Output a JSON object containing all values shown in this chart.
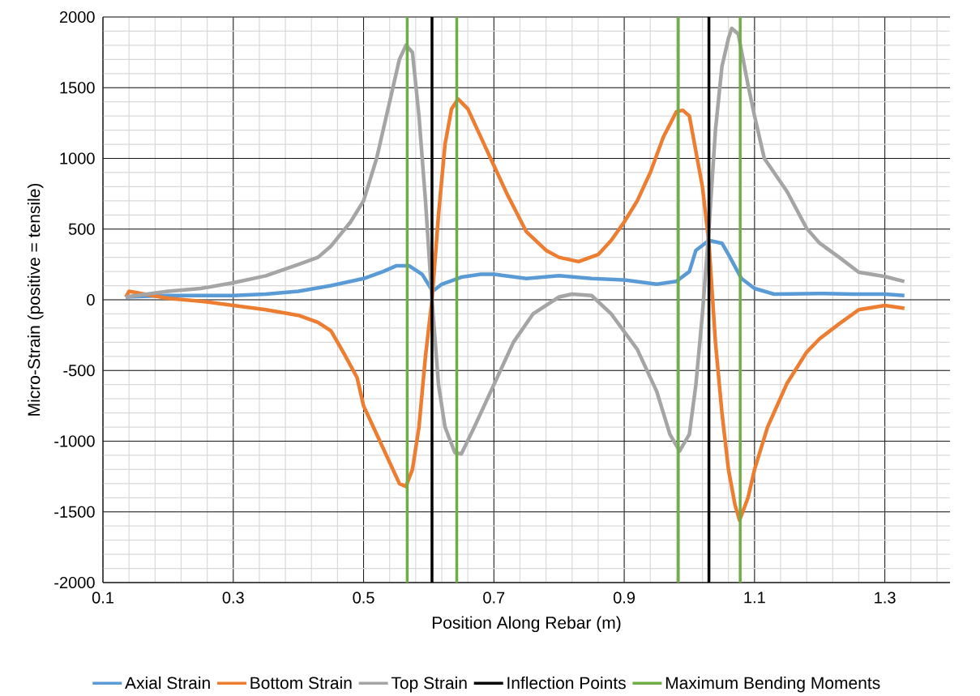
{
  "chart_data": {
    "type": "line",
    "xlabel": "Position Along Rebar (m)",
    "ylabel": "Micro-Strain (positive = tensile)",
    "xlim": [
      0.1,
      1.4
    ],
    "ylim": [
      -2000,
      2000
    ],
    "xticks": [
      0.1,
      0.3,
      0.5,
      0.7,
      0.9,
      1.1,
      1.3
    ],
    "yticks": [
      -2000,
      -1500,
      -1000,
      -500,
      0,
      500,
      1000,
      1500,
      2000
    ],
    "grid": true,
    "legend": "bottom",
    "series": [
      {
        "name": "Axial Strain",
        "color": "#5b9bd5",
        "x": [
          0.135,
          0.2,
          0.25,
          0.3,
          0.35,
          0.4,
          0.45,
          0.5,
          0.53,
          0.55,
          0.57,
          0.59,
          0.606,
          0.62,
          0.65,
          0.68,
          0.7,
          0.75,
          0.8,
          0.85,
          0.9,
          0.95,
          0.98,
          1.0,
          1.01,
          1.03,
          1.05,
          1.06,
          1.08,
          1.1,
          1.13,
          1.2,
          1.25,
          1.3,
          1.33
        ],
        "values": [
          20,
          30,
          30,
          30,
          40,
          60,
          100,
          150,
          200,
          240,
          240,
          180,
          60,
          110,
          160,
          180,
          180,
          150,
          170,
          150,
          140,
          110,
          130,
          200,
          350,
          420,
          400,
          320,
          150,
          80,
          40,
          45,
          40,
          40,
          30
        ]
      },
      {
        "name": "Bottom Strain",
        "color": "#ed7d31",
        "x": [
          0.135,
          0.14,
          0.2,
          0.25,
          0.3,
          0.35,
          0.4,
          0.43,
          0.45,
          0.47,
          0.49,
          0.5,
          0.52,
          0.54,
          0.555,
          0.565,
          0.575,
          0.585,
          0.595,
          0.605,
          0.615,
          0.625,
          0.635,
          0.645,
          0.66,
          0.68,
          0.7,
          0.72,
          0.75,
          0.78,
          0.8,
          0.83,
          0.86,
          0.88,
          0.9,
          0.92,
          0.94,
          0.96,
          0.98,
          0.99,
          1.0,
          1.01,
          1.02,
          1.03,
          1.04,
          1.05,
          1.06,
          1.07,
          1.077,
          1.09,
          1.1,
          1.12,
          1.15,
          1.18,
          1.2,
          1.23,
          1.26,
          1.3,
          1.33
        ],
        "values": [
          20,
          60,
          10,
          -10,
          -40,
          -70,
          -110,
          -160,
          -220,
          -380,
          -550,
          -750,
          -950,
          -1150,
          -1300,
          -1320,
          -1200,
          -900,
          -400,
          0,
          600,
          1100,
          1350,
          1420,
          1350,
          1150,
          950,
          750,
          480,
          350,
          300,
          270,
          320,
          420,
          550,
          700,
          900,
          1150,
          1330,
          1340,
          1300,
          1050,
          800,
          400,
          -300,
          -800,
          -1200,
          -1450,
          -1560,
          -1400,
          -1200,
          -900,
          -590,
          -370,
          -275,
          -170,
          -70,
          -40,
          -60
        ]
      },
      {
        "name": "Top Strain",
        "color": "#a5a5a5",
        "x": [
          0.135,
          0.2,
          0.25,
          0.3,
          0.35,
          0.4,
          0.43,
          0.45,
          0.48,
          0.5,
          0.52,
          0.54,
          0.555,
          0.565,
          0.575,
          0.585,
          0.595,
          0.605,
          0.615,
          0.625,
          0.64,
          0.65,
          0.67,
          0.7,
          0.73,
          0.76,
          0.8,
          0.82,
          0.85,
          0.88,
          0.92,
          0.95,
          0.97,
          0.985,
          1.0,
          1.01,
          1.02,
          1.03,
          1.04,
          1.05,
          1.06,
          1.065,
          1.075,
          1.09,
          1.1,
          1.115,
          1.15,
          1.18,
          1.2,
          1.23,
          1.26,
          1.3,
          1.33
        ],
        "values": [
          20,
          60,
          80,
          120,
          170,
          250,
          300,
          380,
          550,
          700,
          1000,
          1400,
          1700,
          1800,
          1750,
          1300,
          700,
          0,
          -600,
          -900,
          -1080,
          -1090,
          -900,
          -600,
          -300,
          -100,
          20,
          40,
          30,
          -100,
          -350,
          -650,
          -950,
          -1070,
          -950,
          -600,
          -100,
          500,
          1200,
          1650,
          1850,
          1920,
          1880,
          1520,
          1300,
          1000,
          765,
          505,
          400,
          300,
          195,
          165,
          130
        ]
      },
      {
        "name": "Inflection Points",
        "color": "#000000",
        "x": [
          0.605,
          0.605
        ],
        "values": [
          -2000,
          2000
        ]
      },
      {
        "color": "#000000",
        "x": [
          1.03,
          1.03
        ],
        "values": [
          -2000,
          2000
        ]
      },
      {
        "name": "Maximum Bending Moments",
        "color": "#70ad47",
        "x": [
          0.567,
          0.567
        ],
        "values": [
          -2000,
          2000
        ]
      },
      {
        "color": "#70ad47",
        "x": [
          0.643,
          0.643
        ],
        "values": [
          -2000,
          2000
        ]
      },
      {
        "color": "#70ad47",
        "x": [
          0.983,
          0.983
        ],
        "values": [
          -2000,
          2000
        ]
      },
      {
        "color": "#70ad47",
        "x": [
          1.078,
          1.078
        ],
        "values": [
          -2000,
          2000
        ]
      }
    ]
  }
}
